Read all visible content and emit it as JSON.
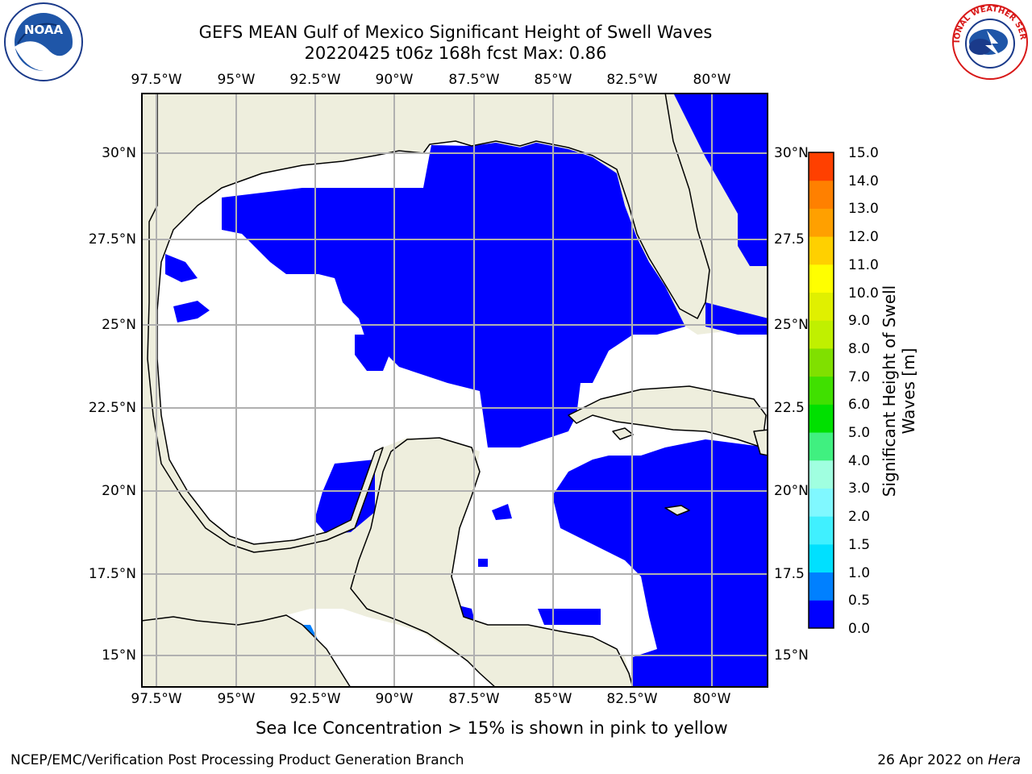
{
  "header": {
    "title_line1": "GEFS MEAN Gulf of Mexico Significant Height of Swell Waves",
    "title_line2": "20220425 t06z 168h fcst   Max: 0.86"
  },
  "logos": {
    "left_icon": "noaa-logo",
    "right_icon": "nws-logo",
    "left_text": "NOAA",
    "right_text": "NATIONAL WEATHER SERVICE"
  },
  "axes": {
    "lon_labels": [
      "97.5°W",
      "95°W",
      "92.5°W",
      "90°W",
      "87.5°W",
      "85°W",
      "82.5°W",
      "80°W"
    ],
    "lat_labels_left": [
      "30°N",
      "27.5°N",
      "25°N",
      "22.5°N",
      "20°N",
      "17.5°N",
      "15°N"
    ],
    "lat_labels_right": [
      "30°N",
      "27.5",
      "25°N",
      "22.5",
      "20°N",
      "17.5",
      "15°N"
    ]
  },
  "colors": {
    "land": "#eeeedd",
    "sea_zero": "#0000ff",
    "sea_low": "#0080ff",
    "no_swell": "#ffffff",
    "grid": "#b0b0b0"
  },
  "colorbar": {
    "title_line1": "Significant Height of Swell",
    "title_line2": "Waves [m]",
    "labels": [
      "15.0",
      "14.0",
      "13.0",
      "12.0",
      "11.0",
      "10.0",
      "9.0",
      "8.0",
      "7.0",
      "6.0",
      "5.0",
      "4.0",
      "3.0",
      "2.0",
      "1.5",
      "1.0",
      "0.5",
      "0.0"
    ],
    "colors_bottom_to_top": [
      "#0000ff",
      "#0080ff",
      "#00e0ff",
      "#40f0ff",
      "#80f8ff",
      "#a0ffe0",
      "#40f080",
      "#00e000",
      "#40e000",
      "#80e000",
      "#c0f000",
      "#e0f000",
      "#ffff00",
      "#ffd000",
      "#ffa000",
      "#ff8000",
      "#ff4000",
      "#ff0000"
    ]
  },
  "footer": {
    "note": "Sea Ice Concentration > 15% is shown in pink to yellow",
    "branch": "NCEP/EMC/Verification Post Processing Product Generation Branch",
    "run_date": "26 Apr 2022 on ",
    "machine": "Hera"
  }
}
